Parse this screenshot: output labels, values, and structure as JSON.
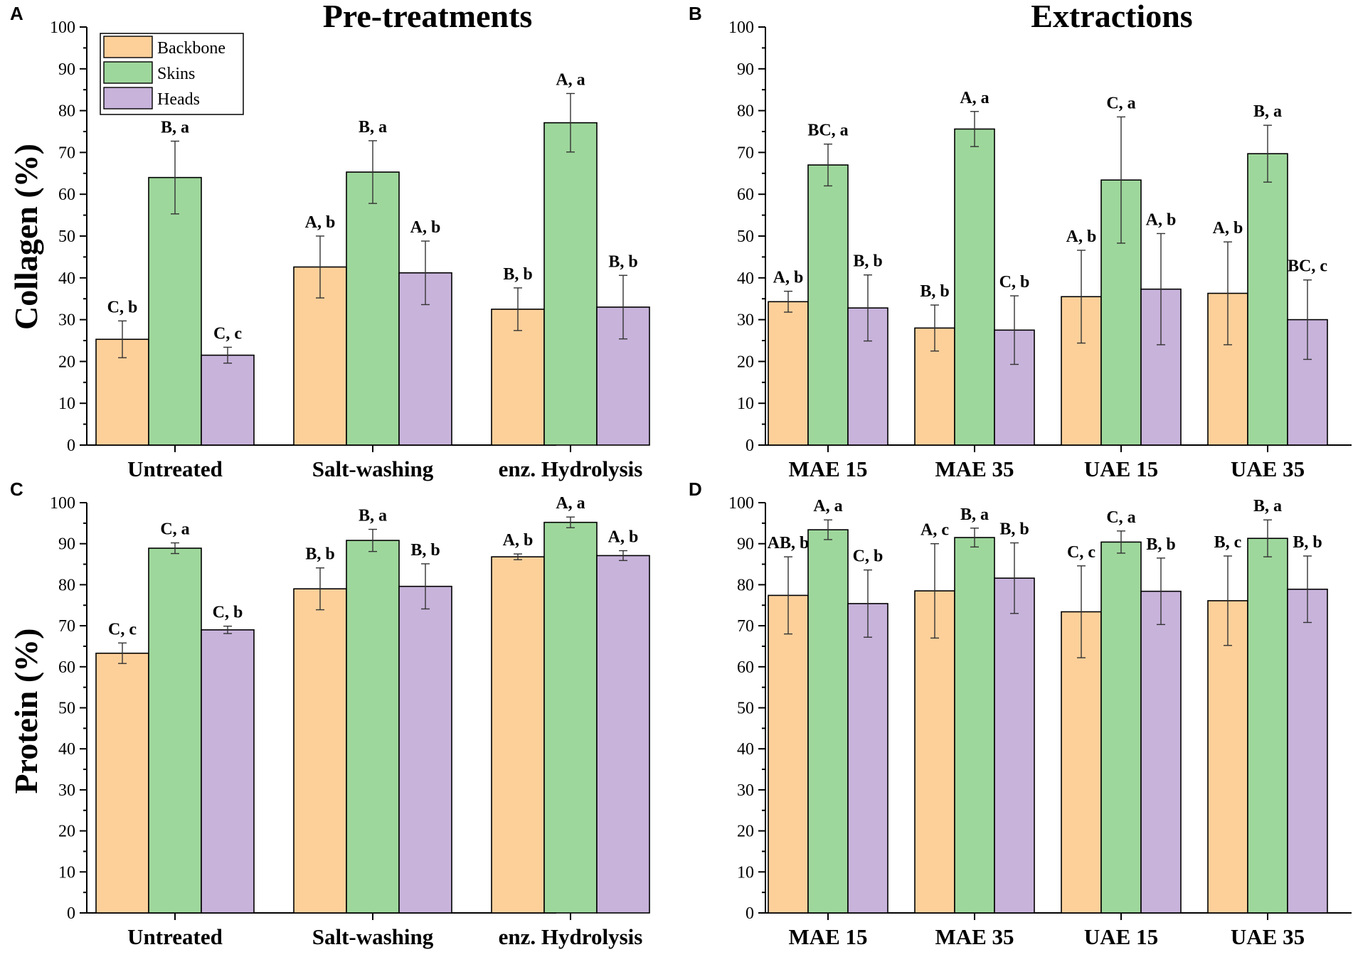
{
  "group_titles": {
    "left": "Pre-treatments",
    "right": "Extractions"
  },
  "ylabels": {
    "top": "Collagen (%)",
    "bottom": "Protein (%)"
  },
  "colors": {
    "Backbone": "#fdd09a",
    "Skins": "#9ed79c",
    "Heads": "#c8b3db"
  },
  "chart_data": [
    {
      "panel": "A",
      "type": "bar",
      "ylabel": "Collagen (%)",
      "ylim": [
        0,
        100
      ],
      "yticks": [
        0,
        10,
        20,
        30,
        40,
        50,
        60,
        70,
        80,
        90,
        100
      ],
      "categories": [
        "Untreated",
        "Salt-washing",
        "enz. Hydrolysis"
      ],
      "legend": [
        "Backbone",
        "Skins",
        "Heads"
      ],
      "series": [
        {
          "name": "Backbone",
          "values": [
            25.3,
            42.6,
            32.5
          ],
          "errors": [
            4.4,
            7.4,
            5.1
          ],
          "labels": [
            "C, b",
            "A, b",
            "B, b"
          ]
        },
        {
          "name": "Skins",
          "values": [
            64.0,
            65.3,
            77.1
          ],
          "errors": [
            8.7,
            7.5,
            7.0
          ],
          "labels": [
            "B, a",
            "B, a",
            "A, a"
          ]
        },
        {
          "name": "Heads",
          "values": [
            21.5,
            41.2,
            33.0
          ],
          "errors": [
            1.9,
            7.6,
            7.6
          ],
          "labels": [
            "C, c",
            "A, b",
            "B, b"
          ]
        }
      ]
    },
    {
      "panel": "B",
      "type": "bar",
      "ylabel": "Collagen (%)",
      "ylim": [
        0,
        100
      ],
      "yticks": [
        0,
        10,
        20,
        30,
        40,
        50,
        60,
        70,
        80,
        90,
        100
      ],
      "categories": [
        "MAE 15",
        "MAE 35",
        "UAE 15",
        "UAE 35"
      ],
      "series": [
        {
          "name": "Backbone",
          "values": [
            34.3,
            28.0,
            35.5,
            36.3
          ],
          "errors": [
            2.5,
            5.5,
            11.1,
            12.3
          ],
          "labels": [
            "A, b",
            "B, b",
            "A, b",
            "A, b"
          ]
        },
        {
          "name": "Skins",
          "values": [
            67.0,
            75.6,
            63.4,
            69.7
          ],
          "errors": [
            5.0,
            4.2,
            15.1,
            6.8
          ],
          "labels": [
            "BC, a",
            "A, a",
            "C, a",
            "B, a"
          ]
        },
        {
          "name": "Heads",
          "values": [
            32.8,
            27.5,
            37.3,
            30.0
          ],
          "errors": [
            7.9,
            8.2,
            13.3,
            9.5
          ],
          "labels": [
            "B, b",
            "C, b",
            "A, b",
            "BC, c"
          ]
        }
      ]
    },
    {
      "panel": "C",
      "type": "bar",
      "ylabel": "Protein (%)",
      "ylim": [
        0,
        100
      ],
      "yticks": [
        0,
        10,
        20,
        30,
        40,
        50,
        60,
        70,
        80,
        90,
        100
      ],
      "categories": [
        "Untreated",
        "Salt-washing",
        "enz. Hydrolysis"
      ],
      "series": [
        {
          "name": "Backbone",
          "values": [
            63.3,
            79.0,
            86.8
          ],
          "errors": [
            2.5,
            5.1,
            0.7
          ],
          "labels": [
            "C, c",
            "B, b",
            "A, b"
          ]
        },
        {
          "name": "Skins",
          "values": [
            88.9,
            90.8,
            95.2
          ],
          "errors": [
            1.3,
            2.7,
            1.3
          ],
          "labels": [
            "C, a",
            "B, a",
            "A, a"
          ]
        },
        {
          "name": "Heads",
          "values": [
            69.0,
            79.6,
            87.1
          ],
          "errors": [
            0.9,
            5.5,
            1.2
          ],
          "labels": [
            "C, b",
            "B, b",
            "A, b"
          ]
        }
      ]
    },
    {
      "panel": "D",
      "type": "bar",
      "ylabel": "Protein (%)",
      "ylim": [
        0,
        100
      ],
      "yticks": [
        0,
        10,
        20,
        30,
        40,
        50,
        60,
        70,
        80,
        90,
        100
      ],
      "categories": [
        "MAE 15",
        "MAE 35",
        "UAE 15",
        "UAE 35"
      ],
      "series": [
        {
          "name": "Backbone",
          "values": [
            77.4,
            78.5,
            73.4,
            76.1
          ],
          "errors": [
            9.4,
            11.5,
            11.2,
            10.9
          ],
          "labels": [
            "AB, b",
            "A, c",
            "C, c",
            "B, c"
          ]
        },
        {
          "name": "Skins",
          "values": [
            93.4,
            91.5,
            90.4,
            91.3
          ],
          "errors": [
            2.4,
            2.3,
            2.7,
            4.5
          ],
          "labels": [
            "A, a",
            "B, a",
            "C, a",
            "B, a"
          ]
        },
        {
          "name": "Heads",
          "values": [
            75.4,
            81.6,
            78.4,
            78.9
          ],
          "errors": [
            8.2,
            8.6,
            8.1,
            8.1
          ],
          "labels": [
            "C, b",
            "B, b",
            "B, b",
            "B, b"
          ]
        }
      ]
    }
  ]
}
